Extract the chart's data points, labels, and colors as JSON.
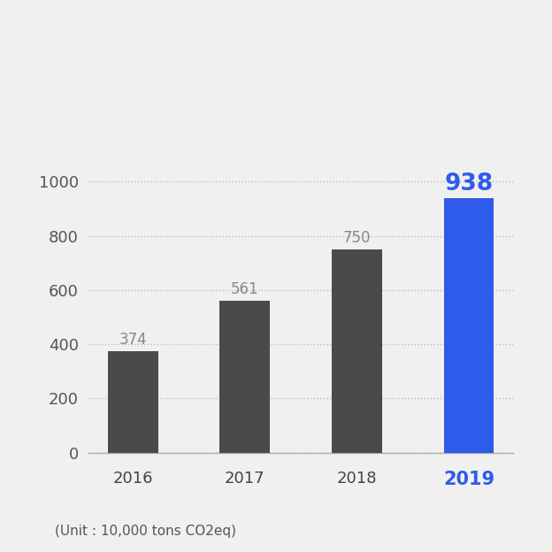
{
  "years": [
    "2016",
    "2017",
    "2018",
    "2019"
  ],
  "values": [
    374,
    561,
    750,
    938
  ],
  "bar_colors": [
    "#4a4a4a",
    "#4a4a4a",
    "#4a4a4a",
    "#2f5bea"
  ],
  "label_colors": [
    "#888888",
    "#888888",
    "#888888",
    "#2f5bea"
  ],
  "xticklabel_colors": [
    "#444444",
    "#444444",
    "#444444",
    "#2f5bea"
  ],
  "highlight_index": 3,
  "ylim": [
    0,
    1100
  ],
  "yticks": [
    0,
    200,
    400,
    600,
    800,
    1000
  ],
  "background_color": "#f0f0f0",
  "unit_text": "(Unit : 10,000 tons CO2eq)",
  "unit_fontsize": 11,
  "bar_label_fontsize": 12,
  "highlight_label_fontsize": 19,
  "tick_fontsize": 13,
  "highlight_tick_fontsize": 15,
  "bar_width": 0.45,
  "grid_color": "#bbbbbb",
  "grid_linestyle": "dotted"
}
